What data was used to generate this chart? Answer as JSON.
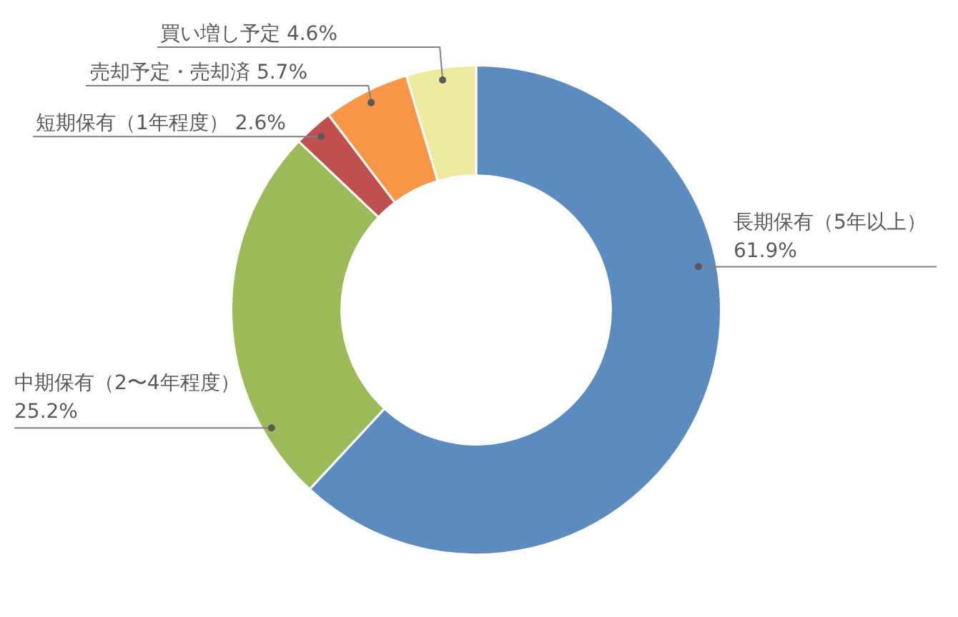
{
  "chart_data": {
    "type": "donut",
    "categories": [
      "長期保有（5年以上）",
      "中期保有（2〜4年程度）",
      "短期保有（1年程度）",
      "売却予定・売却済",
      "買い増し予定"
    ],
    "values": [
      61.9,
      25.2,
      2.6,
      5.7,
      4.6
    ],
    "colors": [
      "#5b8bbf",
      "#9bbb59",
      "#c0504d",
      "#f79646",
      "#ede99f"
    ],
    "value_labels": [
      "61.9%",
      "25.2%",
      "2.6%",
      "5.7%",
      "4.6%"
    ],
    "legend": false
  }
}
